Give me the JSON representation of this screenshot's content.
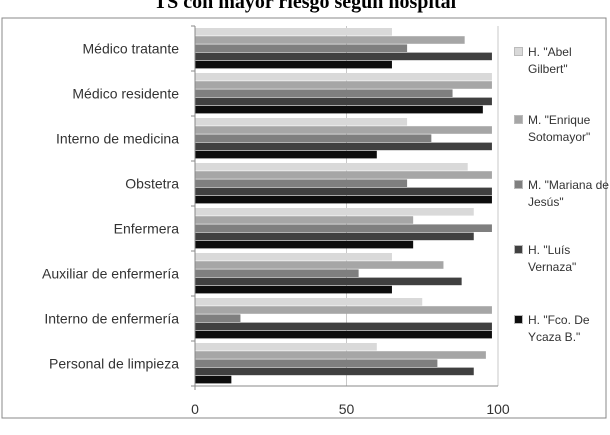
{
  "chart_data": {
    "type": "bar",
    "orientation": "horizontal",
    "title": "TS con mayor riesgo según hospital",
    "categories": [
      "Médico tratante",
      "Médico residente",
      "Interno de medicina",
      "Obstetra",
      "Enfermera",
      "Auxiliar de enfermería",
      "Interno de enfermería",
      "Personal de limpieza"
    ],
    "series": [
      {
        "name": "H. \"Abel Gilbert\"",
        "color": "#d9d9d9",
        "values": [
          65,
          98,
          70,
          90,
          92,
          65,
          75,
          60
        ]
      },
      {
        "name": "M. \"Enrique Sotomayor\"",
        "color": "#a6a6a6",
        "values": [
          89,
          98,
          98,
          98,
          72,
          82,
          98,
          96
        ]
      },
      {
        "name": "M. \"Mariana de Jesús\"",
        "color": "#7f7f7f",
        "values": [
          70,
          85,
          78,
          70,
          98,
          54,
          15,
          80
        ]
      },
      {
        "name": "H. \"Luís Vernaza\"",
        "color": "#404040",
        "values": [
          98,
          98,
          98,
          98,
          92,
          88,
          98,
          92
        ]
      },
      {
        "name": "H. \"Fco. De Ycaza B.\"",
        "color": "#0d0d0d",
        "values": [
          65,
          95,
          60,
          98,
          72,
          65,
          98,
          12
        ]
      }
    ],
    "xlim": [
      0,
      100
    ],
    "xticks": [
      0,
      50,
      100
    ],
    "grid": true,
    "legend": "right"
  }
}
